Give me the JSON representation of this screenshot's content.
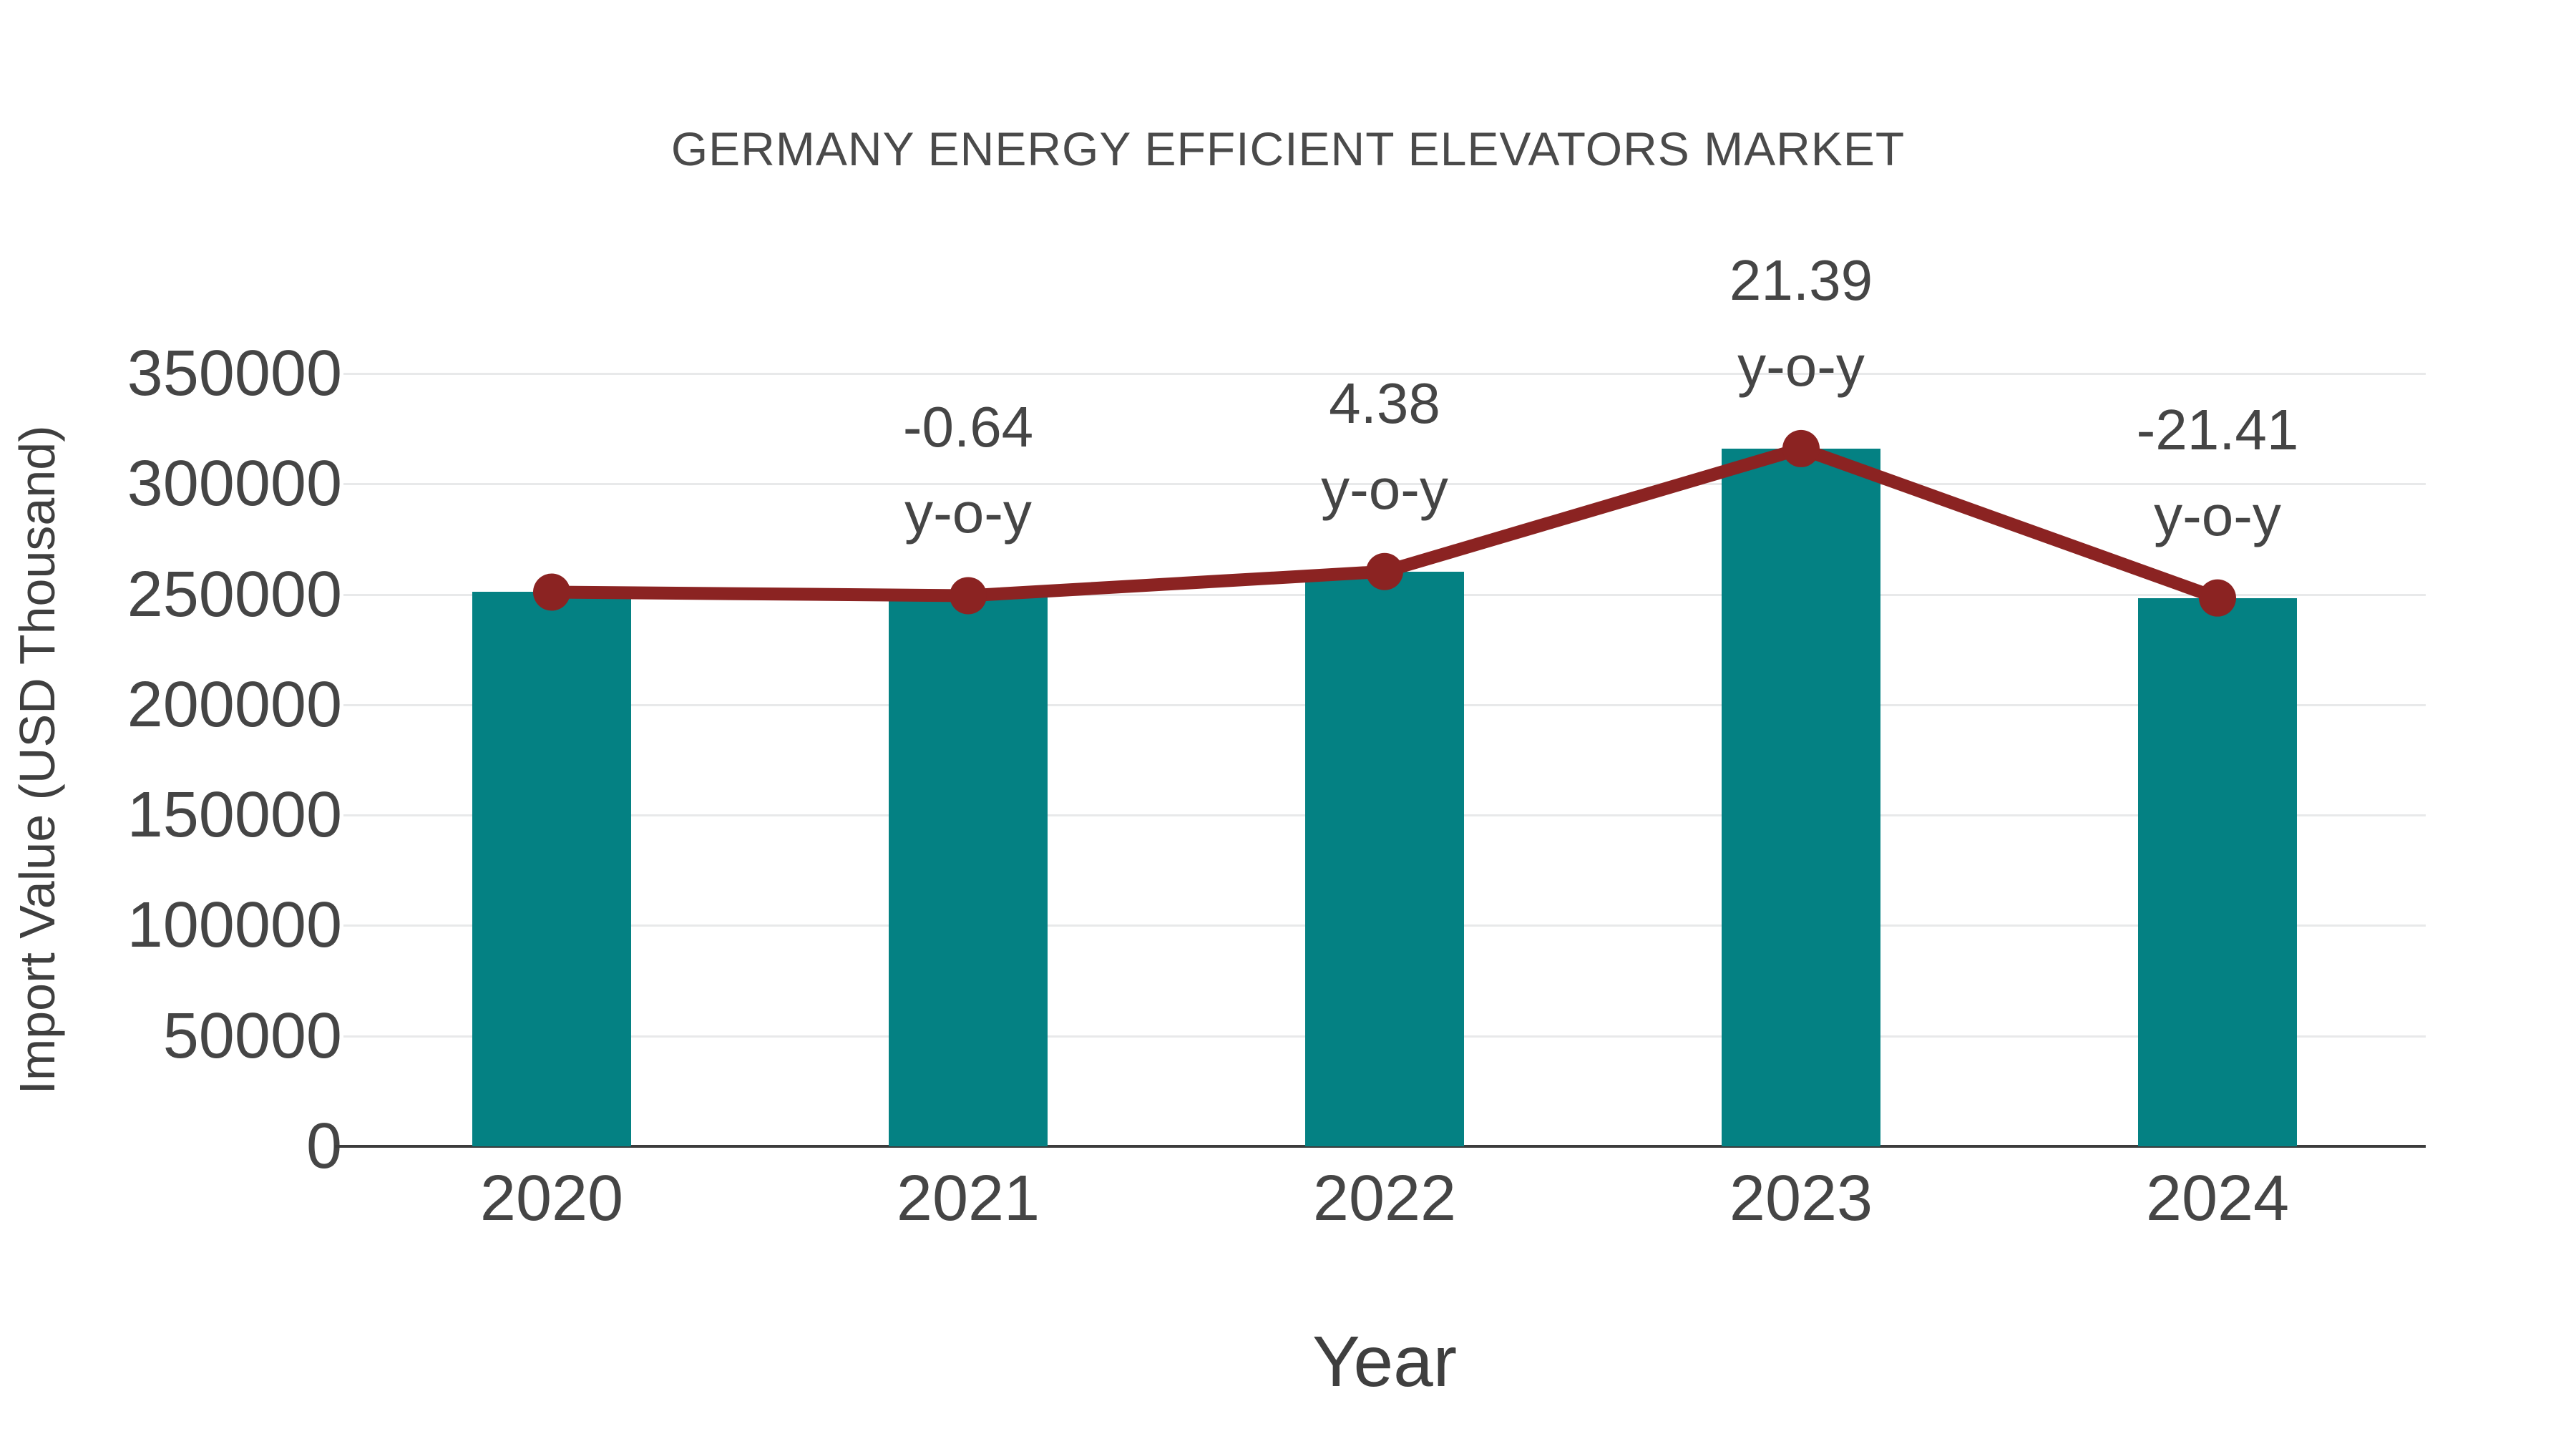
{
  "chart_data": {
    "type": "bar",
    "overlay": "line",
    "title": "GERMANY ENERGY EFFICIENT ELEVATORS MARKET",
    "xlabel": "Year",
    "ylabel": "Import Value (USD Thousand)",
    "categories": [
      "2020",
      "2021",
      "2022",
      "2023",
      "2024"
    ],
    "series": [
      {
        "name": "import-value-bars",
        "type": "bar",
        "values": [
          251000,
          249394,
          260317,
          315999,
          248343
        ]
      },
      {
        "name": "import-value-trend-line",
        "type": "line",
        "values": [
          251000,
          249394,
          260317,
          315999,
          248343
        ]
      }
    ],
    "annotations": [
      {
        "category": "2021",
        "lines": [
          "-0.64",
          "y-o-y"
        ]
      },
      {
        "category": "2022",
        "lines": [
          "4.38",
          "y-o-y"
        ]
      },
      {
        "category": "2023",
        "lines": [
          "21.39",
          "y-o-y"
        ]
      },
      {
        "category": "2024",
        "lines": [
          "-21.41",
          "y-o-y"
        ]
      }
    ],
    "ylim": [
      0,
      350000
    ],
    "yticks": [
      0,
      50000,
      100000,
      150000,
      200000,
      250000,
      300000,
      350000
    ],
    "grid": "horizontal",
    "legend": "none"
  },
  "colors": {
    "bar": "#048183",
    "line": "#8b2322",
    "marker": "#8b2322",
    "grid": "#e8e9ea",
    "axis": "#3c3c3c",
    "text": "#454545",
    "background": "#ffffff"
  }
}
